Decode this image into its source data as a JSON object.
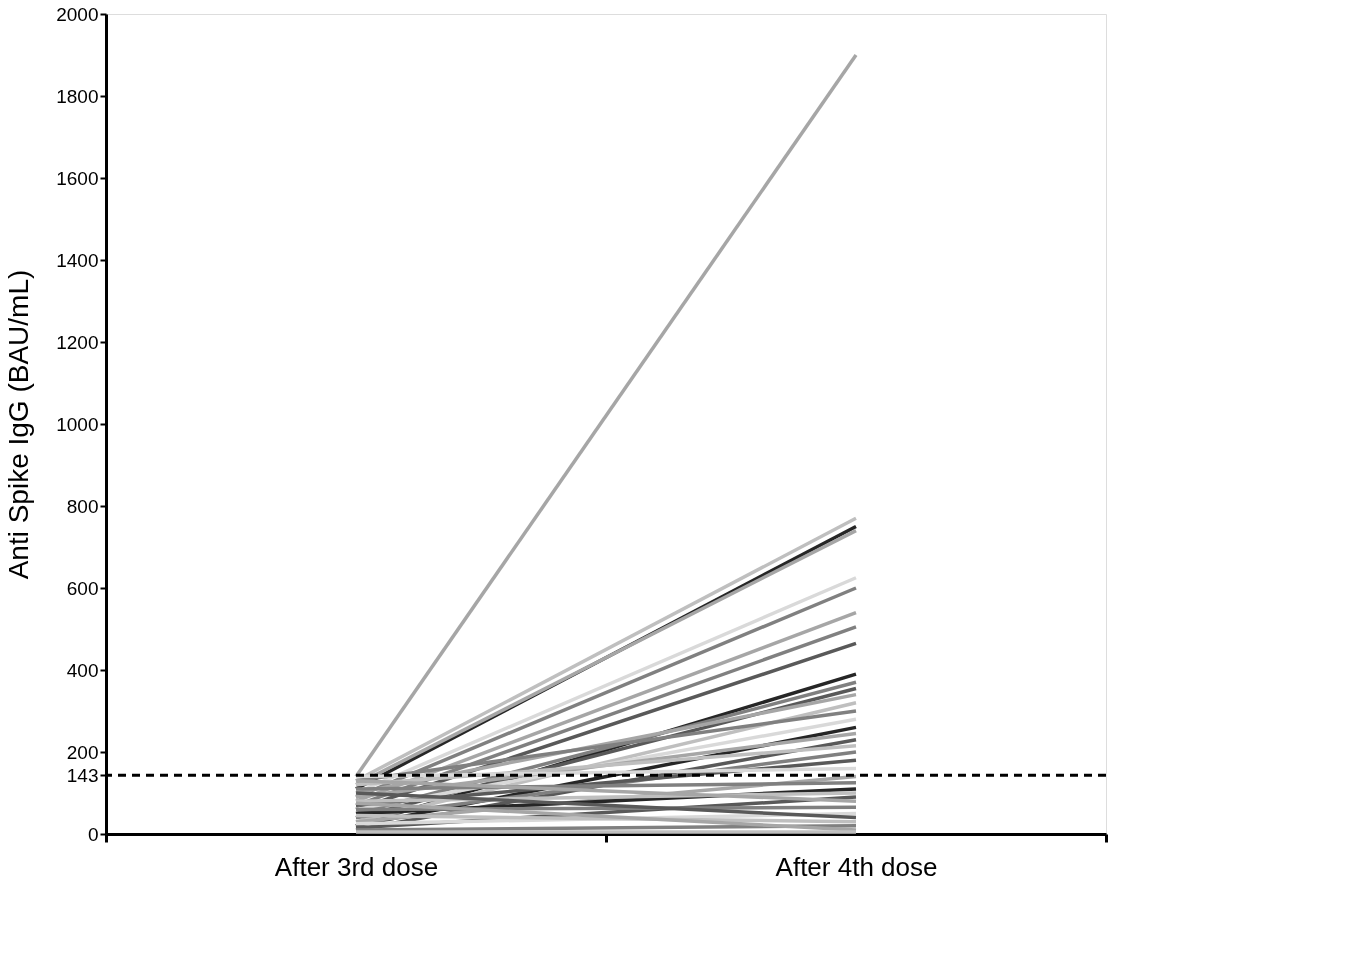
{
  "chart_data": {
    "type": "line",
    "ylabel": "Anti Spike IgG (BAU/mL)",
    "categories": [
      "After 3rd dose",
      "After 4th dose"
    ],
    "ylim": [
      0,
      2000
    ],
    "yticks": [
      0,
      143,
      200,
      400,
      600,
      800,
      1000,
      1200,
      1400,
      1600,
      1800,
      2000
    ],
    "grid": false,
    "legend": false,
    "marker": "none",
    "line_style": "solid",
    "ref_lines": [
      {
        "axis": "y",
        "value": 143,
        "line_style": "dashed",
        "color": "#000000"
      }
    ],
    "series": [
      {
        "color": "#a6a6a6",
        "values": [
          140,
          1900
        ]
      },
      {
        "color": "#bfbfbf",
        "values": [
          130,
          770
        ]
      },
      {
        "color": "#262626",
        "values": [
          110,
          750
        ]
      },
      {
        "color": "#a6a6a6",
        "values": [
          120,
          740
        ]
      },
      {
        "color": "#d9d9d9",
        "values": [
          100,
          625
        ]
      },
      {
        "color": "#808080",
        "values": [
          90,
          600
        ]
      },
      {
        "color": "#a6a6a6",
        "values": [
          80,
          540
        ]
      },
      {
        "color": "#808080",
        "values": [
          70,
          505
        ]
      },
      {
        "color": "#595959",
        "values": [
          60,
          465
        ]
      },
      {
        "color": "#262626",
        "values": [
          20,
          390
        ]
      },
      {
        "color": "#808080",
        "values": [
          50,
          370
        ]
      },
      {
        "color": "#595959",
        "values": [
          40,
          355
        ]
      },
      {
        "color": "#a6a6a6",
        "values": [
          100,
          340
        ]
      },
      {
        "color": "#bfbfbf",
        "values": [
          30,
          320
        ]
      },
      {
        "color": "#808080",
        "values": [
          130,
          300
        ]
      },
      {
        "color": "#d9d9d9",
        "values": [
          60,
          280
        ]
      },
      {
        "color": "#262626",
        "values": [
          20,
          260
        ]
      },
      {
        "color": "#a6a6a6",
        "values": [
          90,
          245
        ]
      },
      {
        "color": "#595959",
        "values": [
          10,
          230
        ]
      },
      {
        "color": "#bfbfbf",
        "values": [
          120,
          215
        ]
      },
      {
        "color": "#808080",
        "values": [
          40,
          200
        ]
      },
      {
        "color": "#595959",
        "values": [
          70,
          180
        ]
      },
      {
        "color": "#d9d9d9",
        "values": [
          140,
          160
        ]
      },
      {
        "color": "#a6a6a6",
        "values": [
          30,
          140
        ]
      },
      {
        "color": "#808080",
        "values": [
          110,
          125
        ]
      },
      {
        "color": "#262626",
        "values": [
          50,
          110
        ]
      },
      {
        "color": "#bfbfbf",
        "values": [
          80,
          100
        ]
      },
      {
        "color": "#595959",
        "values": [
          15,
          90
        ]
      },
      {
        "color": "#a6a6a6",
        "values": [
          130,
          80
        ]
      },
      {
        "color": "#808080",
        "values": [
          60,
          65
        ]
      },
      {
        "color": "#d9d9d9",
        "values": [
          25,
          50
        ]
      },
      {
        "color": "#595959",
        "values": [
          100,
          40
        ]
      },
      {
        "color": "#bfbfbf",
        "values": [
          45,
          30
        ]
      },
      {
        "color": "#808080",
        "values": [
          10,
          20
        ]
      },
      {
        "color": "#a6a6a6",
        "values": [
          75,
          10
        ]
      },
      {
        "color": "#bfbfbf",
        "values": [
          5,
          5
        ]
      }
    ]
  }
}
